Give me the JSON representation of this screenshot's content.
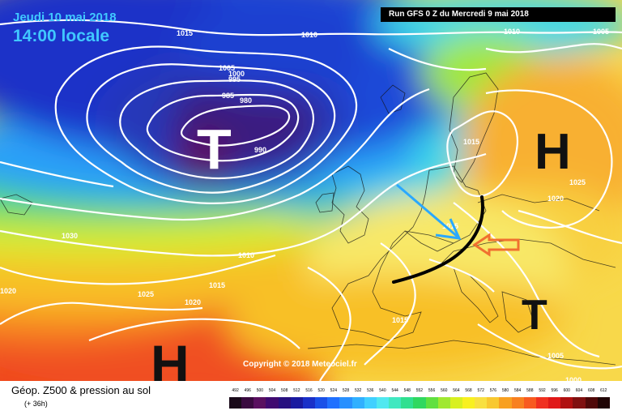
{
  "header": {
    "date": "Jeudi 10 mai 2018",
    "time": "14:00 locale",
    "run": "Run GFS 0 Z du Mercredi 9 mai 2018"
  },
  "copyright": "Copyright © 2018 Meteociel.fr",
  "footer": {
    "field_label": "Géop. Z500 & pression au sol",
    "lead": "(+ 36h)"
  },
  "scale": {
    "labels": [
      "492",
      "496",
      "500",
      "504",
      "508",
      "512",
      "516",
      "520",
      "524",
      "528",
      "532",
      "536",
      "540",
      "544",
      "548",
      "552",
      "556",
      "560",
      "564",
      "568",
      "572",
      "576",
      "580",
      "584",
      "588",
      "592",
      "596",
      "600",
      "604",
      "608",
      "612"
    ],
    "colors": [
      "#1a0a1a",
      "#3a0a40",
      "#5a1060",
      "#400a70",
      "#281080",
      "#1a1aa0",
      "#1a30c8",
      "#1a50e8",
      "#2070ff",
      "#2890ff",
      "#30b0ff",
      "#40d0ff",
      "#50e8f0",
      "#40e8c0",
      "#30e090",
      "#30d860",
      "#60e040",
      "#a0e830",
      "#d8f020",
      "#f8f020",
      "#f8e040",
      "#f8c830",
      "#f8a020",
      "#f88020",
      "#f85a20",
      "#f03020",
      "#e01818",
      "#b01010",
      "#801010",
      "#500808",
      "#200404"
    ]
  },
  "isobars": [
    "1015",
    "1010",
    "1010",
    "1005",
    "1005",
    "1000",
    "995",
    "985",
    "980",
    "990",
    "1030",
    "1010",
    "1015",
    "1025",
    "1020",
    "1020",
    "1015",
    "1015",
    "1025",
    "1020",
    "1015",
    "1005",
    "1000"
  ],
  "pressure_systems": [
    "T",
    "H",
    "H",
    "T"
  ],
  "annotation_colors": {
    "front_line": "#000000",
    "arrow_blue": "#2aa8ff",
    "arrow_orange": "#f07030"
  }
}
